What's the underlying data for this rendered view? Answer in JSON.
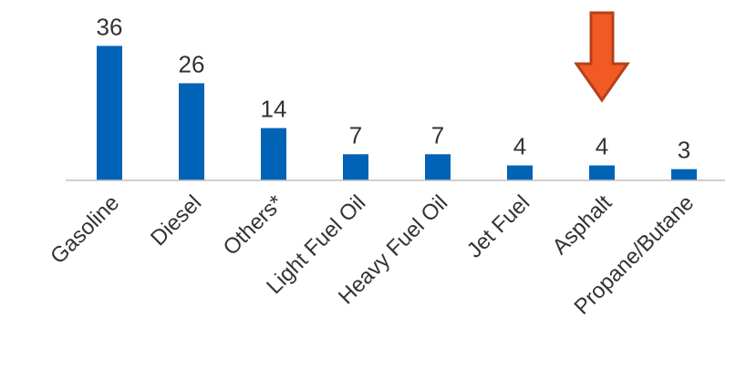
{
  "chart_data": {
    "type": "bar",
    "title": "",
    "xlabel": "",
    "ylabel": "",
    "categories": [
      "Gasoline",
      "Diesel",
      "Others*",
      "Light Fuel Oil",
      "Heavy Fuel Oil",
      "Jet Fuel",
      "Asphalt",
      "Propane/Butane"
    ],
    "values": [
      36,
      26,
      14,
      7,
      7,
      4,
      4,
      3
    ],
    "grid": false,
    "legend": "none",
    "bar_color": "#0063b6",
    "highlight": {
      "category": "Asphalt",
      "marker": "down-arrow",
      "color": "#f25a24"
    }
  }
}
